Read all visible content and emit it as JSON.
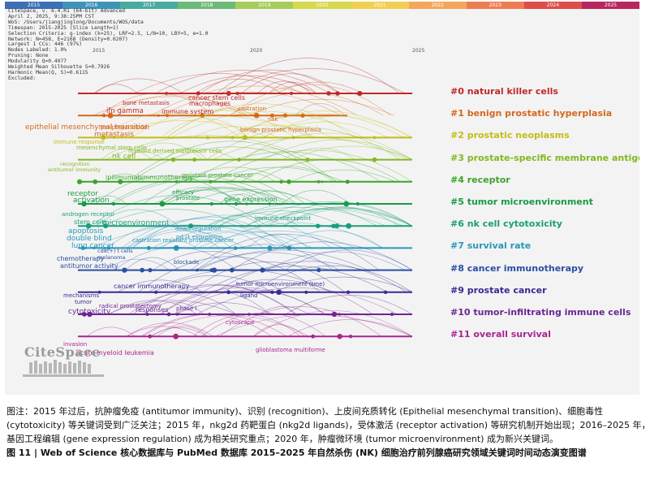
{
  "year_bar": [
    {
      "label": "2015",
      "color": "#3b6fb6"
    },
    {
      "label": "2016",
      "color": "#3f93b8"
    },
    {
      "label": "2017",
      "color": "#49ab9f"
    },
    {
      "label": "2018",
      "color": "#6dba79"
    },
    {
      "label": "2019",
      "color": "#a6cd5a"
    },
    {
      "label": "2020",
      "color": "#d6d84e"
    },
    {
      "label": "2021",
      "color": "#f1cf52"
    },
    {
      "label": "2022",
      "color": "#f3a75a"
    },
    {
      "label": "2023",
      "color": "#ee7d52"
    },
    {
      "label": "2024",
      "color": "#de4d4a"
    },
    {
      "label": "2025",
      "color": "#b8265f"
    }
  ],
  "meta_lines": [
    "CiteSpace, v. 6.4.R1 (64-bit) Advanced",
    "April 2, 2025, 9:38:25PM CST",
    "WoS: /Users/jiangjinglong/Documents/WOS/data",
    "Timespan: 2015-2025 (Slice Length=1)",
    "Selection Criteria: g-index (k=25), LRF=2.5, L/N=10, LBY=5, e=1.0",
    "Network: N=458, E=2168 (Density=0.0207)",
    "Largest 1 CCs: 446 (97%)",
    "Nodes Labeled: 1.0%",
    "Pruning: None",
    "Modularity Q=0.4977",
    "Weighted Mean Silhouette S=0.7926",
    "Harmonic Mean(Q, S)=0.6115",
    "Excluded:"
  ],
  "axis_years": [
    "2015",
    "2020",
    "2025"
  ],
  "clusters": [
    {
      "label": "#0 natural killer cells",
      "color": "#c0282a"
    },
    {
      "label": "#1 benign prostatic hyperplasia",
      "color": "#d5681e"
    },
    {
      "label": "#2 prostatic neoplasms",
      "color": "#c2bd18"
    },
    {
      "label": "#3 prostate-specific membrane antigen",
      "color": "#82b81f"
    },
    {
      "label": "#4 receptor",
      "color": "#3aa528"
    },
    {
      "label": "#5 tumor microenvironment",
      "color": "#199b44"
    },
    {
      "label": "#6 nk cell cytotoxicity",
      "color": "#1a9e7a"
    },
    {
      "label": "#7 survival rate",
      "color": "#2798bb"
    },
    {
      "label": "#8 cancer immunotherapy",
      "color": "#2a4fa2"
    },
    {
      "label": "#9 prostate cancer",
      "color": "#372b93"
    },
    {
      "label": "#10 tumor-infiltrating immune cells",
      "color": "#6b2694"
    },
    {
      "label": "#11 overall survival",
      "color": "#a7268f"
    }
  ],
  "terms": [
    {
      "text": "cancer stem cells",
      "color": "#c0282a",
      "size": 8
    },
    {
      "text": "bone metastasis",
      "color": "#c0282a",
      "size": 7
    },
    {
      "text": "macrophages",
      "color": "#c0282a",
      "size": 7.5
    },
    {
      "text": "ifn gamma",
      "color": "#c0282a",
      "size": 8.5
    },
    {
      "text": "immune system",
      "color": "#c0282a",
      "size": 8
    },
    {
      "text": "castration",
      "color": "#d5681e",
      "size": 7
    },
    {
      "text": "risk",
      "color": "#d5681e",
      "size": 7
    },
    {
      "text": "epithelial mesenchymal transition",
      "color": "#d5681e",
      "size": 9
    },
    {
      "text": "peripheral blood",
      "color": "#d5681e",
      "size": 7
    },
    {
      "text": "metastasis",
      "color": "#d5681e",
      "size": 9
    },
    {
      "text": "benign prostatic hyperplasia",
      "color": "#d5681e",
      "size": 7
    },
    {
      "text": "immune response",
      "color": "#c2bd18",
      "size": 7
    },
    {
      "text": "mesenchymal stem cells",
      "color": "#82b81f",
      "size": 7
    },
    {
      "text": "nk cell",
      "color": "#82b81f",
      "size": 9
    },
    {
      "text": "myeloid derived suppressor cells",
      "color": "#82b81f",
      "size": 7
    },
    {
      "text": "recognition",
      "color": "#82b81f",
      "size": 6.5
    },
    {
      "text": "antitumor immunity",
      "color": "#82b81f",
      "size": 6.5
    },
    {
      "text": "ipilimumab",
      "color": "#3aa528",
      "size": 8
    },
    {
      "text": "immunotherapy",
      "color": "#3aa528",
      "size": 8
    },
    {
      "text": "resistant prostate cancer",
      "color": "#3aa528",
      "size": 7
    },
    {
      "text": "receptor",
      "color": "#199b44",
      "size": 9
    },
    {
      "text": "activation",
      "color": "#199b44",
      "size": 9
    },
    {
      "text": "efficacy",
      "color": "#199b44",
      "size": 7
    },
    {
      "text": "prostate",
      "color": "#199b44",
      "size": 7
    },
    {
      "text": "gene expression",
      "color": "#199b44",
      "size": 8
    },
    {
      "text": "androgen receptor",
      "color": "#1a9e7a",
      "size": 7
    },
    {
      "text": "stem cells",
      "color": "#1a9e7a",
      "size": 8
    },
    {
      "text": "microenvironment",
      "color": "#1a9e7a",
      "size": 9
    },
    {
      "text": "immune checkpoint",
      "color": "#1a9e7a",
      "size": 7
    },
    {
      "text": "apoptosis",
      "color": "#2798bb",
      "size": 9
    },
    {
      "text": "double blind",
      "color": "#2798bb",
      "size": 9
    },
    {
      "text": "lung cancer",
      "color": "#2798bb",
      "size": 9
    },
    {
      "text": "down regulation",
      "color": "#2798bb",
      "size": 7
    },
    {
      "text": "pd l1 expression",
      "color": "#2798bb",
      "size": 7
    },
    {
      "text": "castration resistant prostate cancer",
      "color": "#2798bb",
      "size": 7
    },
    {
      "text": "cd8(+) t cells",
      "color": "#2a4fa2",
      "size": 6.5
    },
    {
      "text": "melanoma",
      "color": "#2a4fa2",
      "size": 6.5
    },
    {
      "text": "chemotherapy",
      "color": "#2a4fa2",
      "size": 8
    },
    {
      "text": "antitumor activity",
      "color": "#2a4fa2",
      "size": 8
    },
    {
      "text": "blockade",
      "color": "#2a4fa2",
      "size": 7
    },
    {
      "text": "cancer immunotherapy",
      "color": "#372b93",
      "size": 8
    },
    {
      "text": "tumor microenvironment (tme)",
      "color": "#372b93",
      "size": 7
    },
    {
      "text": "mechanisms",
      "color": "#372b93",
      "size": 7
    },
    {
      "text": "tumor",
      "color": "#372b93",
      "size": 7
    },
    {
      "text": "ligand",
      "color": "#372b93",
      "size": 7
    },
    {
      "text": "radical prostatectomy",
      "color": "#6b2694",
      "size": 7
    },
    {
      "text": "cytotoxicity",
      "color": "#6b2694",
      "size": 9
    },
    {
      "text": "responses",
      "color": "#6b2694",
      "size": 8
    },
    {
      "text": "phase i",
      "color": "#6b2694",
      "size": 7
    },
    {
      "text": "cytoscape",
      "color": "#a7268f",
      "size": 7
    },
    {
      "text": "invasion",
      "color": "#a7268f",
      "size": 7
    },
    {
      "text": "acute myeloid leukemia",
      "color": "#a7268f",
      "size": 8
    },
    {
      "text": "glioblastoma multiforme",
      "color": "#a7268f",
      "size": 7
    }
  ],
  "logo_text": "CiteSpace",
  "caption": "图注：2015 年过后，抗肿瘤免疫 (antitumor immunity)、识别 (recognition)、上皮间充质转化 (Epithelial mesenchymal transition)、细胞毒性 (cytotoxicity) 等关键词受到广泛关注；2015 年，nkg2d 药靶蛋白 (nkg2d ligands)，受体激活 (receptor activation) 等研究机制开始出现；2016–2025 年，基因工程编辑 (gene expression regulation) 成为相关研究重点；2020 年，肿瘤微环境 (tumor microenvironment) 成为新兴关键词。",
  "figure_title": "图 11  |  Web of Science 核心数据库与 PubMed 数据库 2015–2025 年自然杀伤 (NK) 细胞治疗前列腺癌研究领域关键词时间动态演变图谱"
}
